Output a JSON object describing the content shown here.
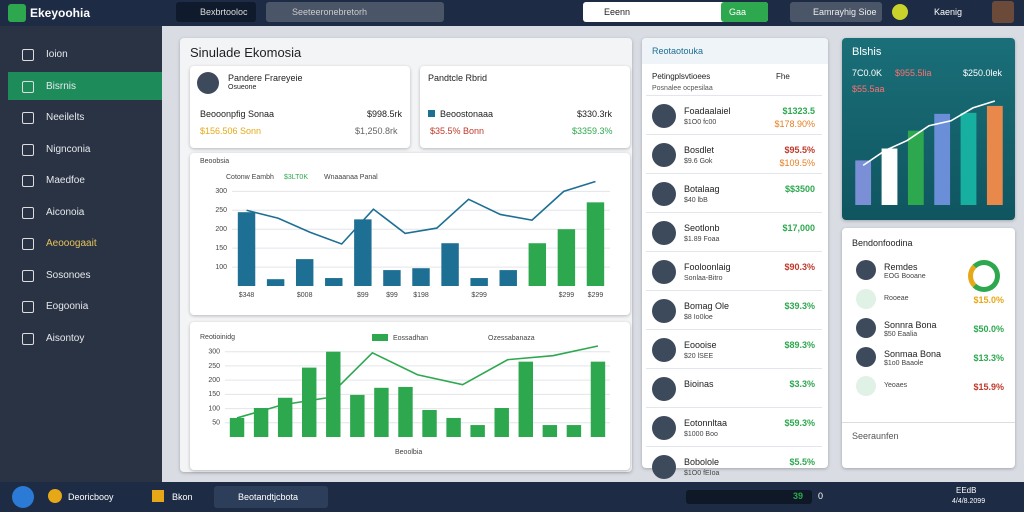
{
  "topbar": {
    "brand": "Ekeyoohia",
    "tab": "Bexbrtooloc",
    "search": "Seeteeronebretorh",
    "search2": "Eeenn",
    "search_btn": "Gaa",
    "notif": "Eamrayhig Sioe",
    "user": "Kaenig"
  },
  "sidebar": {
    "active": 1,
    "items": [
      "Ioion",
      "Bisrnis",
      "Neeilelts",
      "Nignconia",
      "Maedfoe",
      "Aiconoia",
      "Aeooogaait",
      "Sosonoes",
      "Eogoonia",
      "Aisontoy"
    ]
  },
  "main": {
    "title": "Sinulade Ekomosia",
    "card1": {
      "name": "Pandere Frareyeie",
      "sub": "Osueone",
      "label": "Beooonpfig Sonaa",
      "value": "$998.5rk",
      "amount": "$156.506 Sonn",
      "amount2": "$1,250.8rk"
    },
    "card2": {
      "name": "Pandtcle Rbrid",
      "label": "Beoostonaaa",
      "value": "$330.3rk",
      "amount": "$35.5% Bonn",
      "amount2": "$3359.3%"
    },
    "chart1": {
      "title": "Beoobsia",
      "legend": [
        "Cotonw Eambh",
        "$3LT0K",
        "Wnaaanaa Panal"
      ],
      "ylim": [
        50,
        330
      ],
      "yticks": [
        100,
        150,
        200,
        250,
        300
      ],
      "bars": [
        245,
        68,
        121,
        71,
        226,
        92,
        97,
        163,
        71,
        92,
        163,
        200,
        271
      ],
      "bar_colors": [
        "#1e6f94",
        "#1e6f94",
        "#1e6f94",
        "#1e6f94",
        "#1e6f94",
        "#1e6f94",
        "#1e6f94",
        "#1e6f94",
        "#1e6f94",
        "#1e6f94",
        "#2ea84f",
        "#2ea84f",
        "#2ea84f"
      ],
      "x_labels": [
        "$348",
        null,
        "$008",
        null,
        "$99",
        "$99",
        "$198",
        null,
        "$299",
        null,
        null,
        "$299",
        "$299"
      ],
      "line": [
        250,
        229,
        192,
        161,
        253,
        189,
        203,
        279,
        239,
        224,
        300,
        326
      ],
      "line_color": "#1e6f94"
    },
    "chart2": {
      "title": "Reotioinidg",
      "legend": [
        "Eossadhan",
        "Ozessabanaza"
      ],
      "footer": "Beoolbia",
      "ylim": [
        0,
        320
      ],
      "yticks": [
        50,
        100,
        150,
        200,
        250,
        300
      ],
      "bars": [
        67,
        102,
        138,
        244,
        300,
        148,
        173,
        176,
        95,
        67,
        42,
        102,
        265,
        42,
        42,
        265
      ],
      "bar_color": "#2ea84f",
      "line": [
        67,
        113,
        138,
        296,
        219,
        184,
        272,
        286,
        320
      ],
      "line_color": "#2ea84f"
    }
  },
  "list": {
    "title": "Reotaotouka",
    "sub_left": "Petingplsvtioees",
    "sub_left2": "Posnalee ocpesilaa",
    "sub_right": "Fhe",
    "items": [
      {
        "name": "Foadaalaiel",
        "sub": "$1O0 fc00",
        "value": "$1323.5",
        "value2": "$178.90%",
        "color": "#2ea84f"
      },
      {
        "name": "Bosdlet",
        "sub": "$9.6 Gok",
        "value": "$95.5%",
        "value2": "$109.5%",
        "color": "#c0392b"
      },
      {
        "name": "Botalaag",
        "sub": "$40 lbB",
        "value": "$$3500",
        "value2": null,
        "color": "#2ea84f"
      },
      {
        "name": "Seotlonb",
        "sub": "$1.89 Foaa",
        "value": "$17,000",
        "value2": null,
        "color": "#2ea84f"
      },
      {
        "name": "Fooloonlaig",
        "sub": "Sonlaa-Bitro",
        "value": "$90.3%",
        "value2": null,
        "color": "#c0392b"
      },
      {
        "name": "Bomag Ole",
        "sub": "$8 Io0loe",
        "value": "$39.3%",
        "value2": null,
        "color": "#2ea84f"
      },
      {
        "name": "Eoooise",
        "sub": "$20 lSEE",
        "value": "$89.3%",
        "value2": null,
        "color": "#2ea84f"
      },
      {
        "name": "Bioinas",
        "sub": null,
        "value": "$3.3%",
        "value2": null,
        "color": "#2ea84f"
      },
      {
        "name": "Eotonnltaa",
        "sub": "$1000 Boo",
        "value": "$59.3%",
        "value2": null,
        "color": "#2ea84f"
      },
      {
        "name": "Bobolole",
        "sub": "$1O0 fEIoa",
        "value": "$5.5%",
        "value2": null,
        "color": "#2ea84f"
      }
    ]
  },
  "teal": {
    "title": "Blshis",
    "stats": [
      "7C0.0K",
      "$955.5lia",
      "$250.0lek",
      "$55.5aa"
    ],
    "ylim": [
      0,
      110
    ],
    "bars": [
      45,
      57,
      75,
      92,
      93,
      100
    ],
    "bar_colors": [
      "#7b8fd6",
      "#ffffff",
      "#2ea84f",
      "#6a8fd8",
      "#17b0a0",
      "#e8884a"
    ],
    "line": [
      40,
      55,
      65,
      80,
      85,
      98,
      105
    ]
  },
  "summary": {
    "title": "Bendonfoodina",
    "items": [
      {
        "name": "Remdes",
        "sub": "EOG Booane",
        "value": null,
        "color": "#2ea84f"
      },
      {
        "name": null,
        "sub": "Rooeae",
        "value": "$15.0%",
        "color": "#e6a817"
      },
      {
        "name": "Sonnra Bona",
        "sub": "$50 Eaalia",
        "value": "$50.0%",
        "color": "#2ea84f"
      },
      {
        "name": "Sonmaa Bona",
        "sub": "$1o0 Baaole",
        "value": "$13.3%",
        "color": "#2ea84f"
      },
      {
        "name": null,
        "sub": "Yeoaes",
        "value": "$15.9%",
        "color": "#c0392b"
      }
    ],
    "footer": "Seeraunfen"
  },
  "taskbar": {
    "items": [
      "Deoricbooy",
      "Bkon",
      "Beotandtjcbota"
    ],
    "value": "39",
    "num": "0",
    "time": "EEdB",
    "date": "4/4/8.2099"
  }
}
